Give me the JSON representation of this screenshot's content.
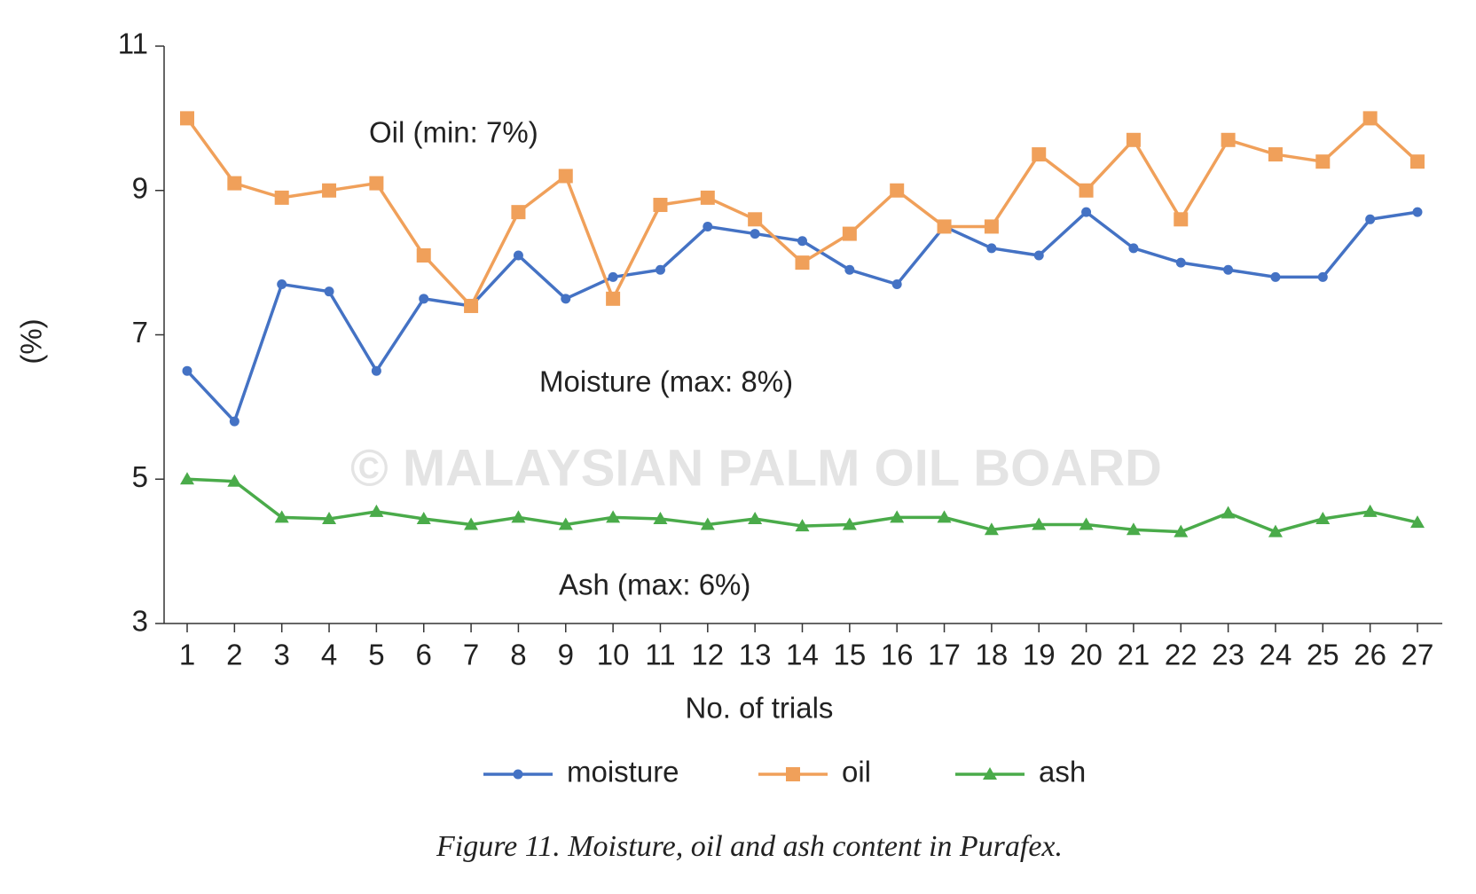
{
  "chart_data": {
    "type": "line",
    "categories": [
      "1",
      "2",
      "3",
      "4",
      "5",
      "6",
      "7",
      "8",
      "9",
      "10",
      "11",
      "12",
      "13",
      "14",
      "15",
      "16",
      "17",
      "18",
      "19",
      "20",
      "21",
      "22",
      "23",
      "24",
      "25",
      "26",
      "27"
    ],
    "series": [
      {
        "name": "moisture",
        "color": "#4472c4",
        "marker": "circle",
        "values": [
          6.5,
          5.8,
          7.7,
          7.6,
          6.5,
          7.5,
          7.4,
          8.1,
          7.5,
          7.8,
          7.9,
          8.5,
          8.4,
          8.3,
          7.9,
          7.7,
          8.5,
          8.2,
          8.1,
          8.7,
          8.2,
          8.0,
          7.9,
          7.8,
          7.8,
          8.6,
          8.7
        ]
      },
      {
        "name": "oil",
        "color": "#f0a05a",
        "marker": "square",
        "values": [
          10.0,
          9.1,
          8.9,
          9.0,
          9.1,
          8.1,
          7.4,
          8.7,
          9.2,
          7.5,
          8.8,
          8.9,
          8.6,
          8.0,
          8.4,
          9.0,
          8.5,
          8.5,
          9.5,
          9.0,
          9.7,
          8.6,
          9.7,
          9.5,
          9.4,
          10.0,
          9.4
        ]
      },
      {
        "name": "ash",
        "color": "#4aab4a",
        "marker": "triangle",
        "values": [
          5.0,
          4.97,
          4.47,
          4.45,
          4.55,
          4.45,
          4.37,
          4.47,
          4.37,
          4.47,
          4.45,
          4.37,
          4.45,
          4.35,
          4.37,
          4.47,
          4.47,
          4.3,
          4.37,
          4.37,
          4.3,
          4.27,
          4.53,
          4.27,
          4.45,
          4.55,
          4.4
        ]
      }
    ],
    "ylim": [
      3,
      11
    ],
    "yticks": [
      3,
      5,
      7,
      9,
      11
    ],
    "ylabel": "(%)",
    "xlabel": "No. of trials",
    "annotations": [
      "Oil (min: 7%)",
      "Moisture (max: 8%)",
      "Ash (max: 6%)"
    ],
    "watermark": "© MALAYSIAN PALM OIL BOARD",
    "caption": "Figure 11. Moisture, oil and ash content in Purafex."
  }
}
